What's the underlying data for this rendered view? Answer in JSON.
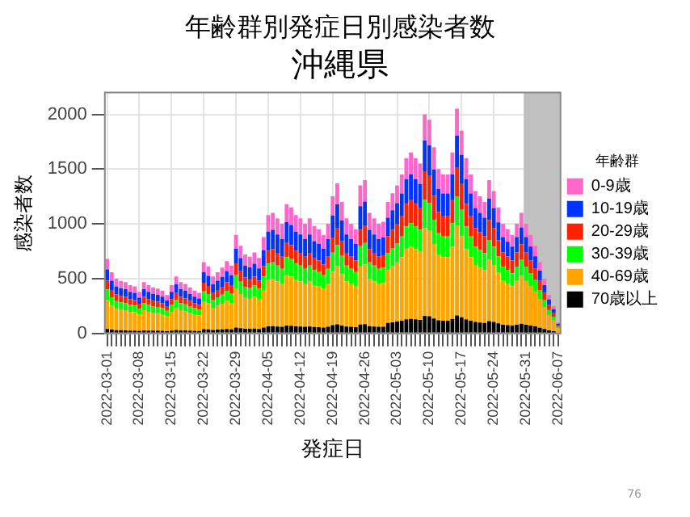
{
  "chart_data": {
    "type": "bar",
    "title": "年齢群別発症日別感染者数",
    "subtitle": "沖縄県",
    "xlabel": "発症日",
    "ylabel": "感染者数",
    "legend_title": "年齢群",
    "stacked": true,
    "grid": true,
    "legend": "right",
    "ylim": [
      0,
      2200
    ],
    "yticks": [
      0,
      500,
      1000,
      1500,
      2000
    ],
    "categories": [
      "2022-03-01",
      null,
      null,
      null,
      null,
      null,
      null,
      "2022-03-08",
      null,
      null,
      null,
      null,
      null,
      null,
      "2022-03-15",
      null,
      null,
      null,
      null,
      null,
      null,
      "2022-03-22",
      null,
      null,
      null,
      null,
      null,
      null,
      "2022-03-29",
      null,
      null,
      null,
      null,
      null,
      null,
      "2022-04-05",
      null,
      null,
      null,
      null,
      null,
      null,
      "2022-04-12",
      null,
      null,
      null,
      null,
      null,
      null,
      "2022-04-19",
      null,
      null,
      null,
      null,
      null,
      null,
      "2022-04-26",
      null,
      null,
      null,
      null,
      null,
      null,
      "2022-05-03",
      null,
      null,
      null,
      null,
      null,
      null,
      "2022-05-10",
      null,
      null,
      null,
      null,
      null,
      null,
      "2022-05-17",
      null,
      null,
      null,
      null,
      null,
      null,
      "2022-05-24",
      null,
      null,
      null,
      null,
      null,
      null,
      "2022-05-31",
      null,
      null,
      null,
      null,
      null,
      null,
      "2022-06-07"
    ],
    "bands": [
      {
        "axis": "x",
        "from": "2022-05-31",
        "to": "2022-06-07",
        "color": "#c0c0c0"
      }
    ],
    "annotations": [
      "76"
    ],
    "series": [
      {
        "name": "70歳以上",
        "color": "#000000",
        "values": [
          41,
          34,
          30,
          29,
          28,
          26,
          26,
          23,
          28,
          26,
          25,
          25,
          23,
          21,
          26,
          31,
          28,
          27,
          25,
          23,
          22,
          39,
          37,
          31,
          34,
          36,
          40,
          37,
          54,
          48,
          43,
          42,
          44,
          41,
          53,
          65,
          66,
          63,
          60,
          71,
          69,
          65,
          63,
          60,
          63,
          59,
          57,
          54,
          60,
          75,
          82,
          72,
          63,
          60,
          57,
          81,
          84,
          66,
          63,
          60,
          61,
          96,
          102,
          108,
          116,
          128,
          132,
          128,
          124,
          160,
          156,
          136,
          120,
          116,
          116,
          132,
          164,
          148,
          128,
          116,
          104,
          100,
          96,
          112,
          104,
          92,
          80,
          76,
          72,
          80,
          88,
          80,
          72,
          64,
          52,
          40,
          28,
          20,
          8
        ]
      },
      {
        "name": "40-69歳",
        "color": "#ffa500",
        "values": [
          265,
          218,
          195,
          187,
          183,
          172,
          168,
          148,
          183,
          172,
          164,
          160,
          152,
          137,
          172,
          203,
          183,
          176,
          164,
          152,
          144,
          254,
          238,
          203,
          218,
          234,
          257,
          242,
          351,
          312,
          281,
          273,
          289,
          269,
          343,
          421,
          429,
          410,
          390,
          460,
          449,
          421,
          410,
          390,
          410,
          382,
          371,
          351,
          390,
          488,
          534,
          468,
          410,
          390,
          371,
          527,
          546,
          429,
          410,
          390,
          398,
          480,
          512,
          540,
          580,
          640,
          660,
          640,
          620,
          800,
          780,
          680,
          600,
          580,
          580,
          660,
          820,
          740,
          640,
          580,
          520,
          500,
          480,
          560,
          520,
          460,
          400,
          380,
          360,
          400,
          440,
          400,
          360,
          320,
          260,
          200,
          140,
          100,
          40
        ]
      },
      {
        "name": "30-39歳",
        "color": "#00ff00",
        "values": [
          95,
          78,
          70,
          67,
          66,
          62,
          60,
          53,
          66,
          62,
          59,
          57,
          55,
          49,
          62,
          73,
          66,
          63,
          59,
          55,
          52,
          91,
          85,
          73,
          78,
          84,
          92,
          87,
          126,
          112,
          101,
          98,
          104,
          97,
          123,
          151,
          154,
          147,
          140,
          165,
          161,
          151,
          147,
          140,
          147,
          137,
          133,
          126,
          140,
          175,
          192,
          168,
          147,
          140,
          133,
          189,
          196,
          154,
          147,
          140,
          143,
          156,
          166,
          176,
          189,
          208,
          215,
          208,
          202,
          260,
          254,
          221,
          195,
          189,
          189,
          215,
          267,
          241,
          208,
          189,
          169,
          163,
          156,
          182,
          169,
          150,
          130,
          124,
          117,
          130,
          143,
          130,
          117,
          104,
          85,
          65,
          46,
          33,
          13
        ]
      },
      {
        "name": "20-29歳",
        "color": "#ff2200",
        "values": [
          82,
          67,
          60,
          58,
          56,
          53,
          52,
          46,
          56,
          53,
          50,
          49,
          47,
          42,
          53,
          62,
          56,
          54,
          50,
          47,
          44,
          78,
          73,
          62,
          67,
          72,
          79,
          74,
          108,
          96,
          86,
          77,
          81,
          76,
          97,
          119,
          121,
          116,
          110,
          130,
          127,
          119,
          116,
          110,
          116,
          108,
          105,
          99,
          110,
          138,
          151,
          132,
          116,
          110,
          105,
          149,
          154,
          121,
          116,
          110,
          112,
          156,
          166,
          176,
          189,
          208,
          215,
          208,
          202,
          260,
          254,
          221,
          195,
          189,
          189,
          215,
          267,
          241,
          208,
          189,
          169,
          163,
          156,
          182,
          169,
          150,
          130,
          124,
          117,
          130,
          143,
          130,
          117,
          104,
          85,
          65,
          46,
          33,
          13
        ]
      },
      {
        "name": "10-19歳",
        "color": "#0033ff",
        "values": [
          102,
          84,
          75,
          72,
          70,
          66,
          64,
          57,
          70,
          66,
          63,
          61,
          58,
          52,
          66,
          78,
          70,
          68,
          63,
          58,
          56,
          98,
          92,
          78,
          84,
          90,
          99,
          93,
          135,
          120,
          108,
          112,
          118,
          110,
          141,
          173,
          176,
          168,
          160,
          189,
          184,
          173,
          168,
          160,
          168,
          157,
          152,
          144,
          160,
          200,
          219,
          192,
          168,
          160,
          152,
          216,
          224,
          176,
          168,
          160,
          163,
          168,
          179,
          189,
          203,
          224,
          231,
          224,
          217,
          280,
          273,
          238,
          210,
          203,
          203,
          231,
          287,
          259,
          224,
          203,
          182,
          175,
          168,
          196,
          182,
          161,
          140,
          133,
          126,
          140,
          154,
          140,
          126,
          112,
          91,
          70,
          49,
          35,
          14
        ]
      },
      {
        "name": "0-9歳",
        "color": "#ff66cc",
        "values": [
          95,
          78,
          70,
          67,
          66,
          62,
          60,
          53,
          66,
          62,
          59,
          57,
          55,
          49,
          62,
          73,
          66,
          63,
          59,
          55,
          52,
          91,
          85,
          73,
          78,
          84,
          92,
          87,
          126,
          112,
          101,
          98,
          104,
          97,
          123,
          151,
          154,
          147,
          140,
          165,
          161,
          151,
          147,
          140,
          147,
          137,
          133,
          126,
          140,
          175,
          192,
          168,
          147,
          140,
          133,
          189,
          196,
          154,
          147,
          140,
          143,
          144,
          154,
          162,
          174,
          192,
          198,
          192,
          186,
          240,
          234,
          204,
          180,
          174,
          174,
          198,
          246,
          222,
          192,
          174,
          156,
          150,
          144,
          168,
          156,
          138,
          120,
          114,
          108,
          120,
          132,
          120,
          108,
          96,
          78,
          60,
          42,
          30,
          12
        ]
      }
    ]
  }
}
